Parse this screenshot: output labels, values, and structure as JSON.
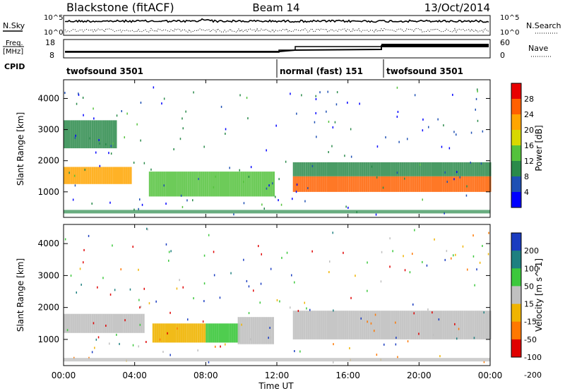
{
  "chart_data": {
    "type": "heatmap",
    "header": {
      "radar": "Blackstone (fitACF)",
      "beam": "Beam 14",
      "date": "13/Oct/2014"
    },
    "noise_panel": {
      "left_label": "N.Sky",
      "right_label": "N.Search",
      "left_ticks": [
        "10^5",
        "10^0"
      ],
      "right_ticks": [
        "10^5",
        "10^0"
      ]
    },
    "freq_panel": {
      "left_label_top": "Freq.",
      "left_label_bottom": "[MHz]",
      "left_ticks": [
        "18",
        "8"
      ],
      "right_label": "Nave",
      "right_ticks": [
        "60",
        "0"
      ]
    },
    "cpid": {
      "label": "CPID",
      "segments": [
        {
          "name": "twofsound 3501",
          "start_hour": 0,
          "end_hour": 12
        },
        {
          "name": "normal (fast) 151",
          "start_hour": 12,
          "end_hour": 18
        },
        {
          "name": "twofsound 3501",
          "start_hour": 18,
          "end_hour": 24
        }
      ]
    },
    "x": {
      "label": "Time UT",
      "range_hours": [
        0,
        24
      ],
      "ticks": [
        "00:00",
        "04:00",
        "08:00",
        "12:00",
        "16:00",
        "20:00",
        "00:00"
      ]
    },
    "y": {
      "label": "Slant Range [km]",
      "range_km": [
        180,
        4600
      ],
      "ticks": [
        "1000",
        "2000",
        "3000",
        "4000"
      ]
    },
    "power": {
      "colorbar_label": "Power [dB]",
      "range": [
        0,
        32
      ],
      "tick_labels": [
        "4",
        "8",
        "12",
        "16",
        "20",
        "24",
        "28"
      ],
      "colors": [
        "#0000ff",
        "#1e50b4",
        "#2a8a4a",
        "#54c23c",
        "#d8d800",
        "#ffa500",
        "#ff6000",
        "#e80000"
      ]
    },
    "velocity": {
      "colorbar_label": "Velocity [m s^-1]",
      "range": [
        -250,
        250
      ],
      "tick_labels": [
        "200",
        "100",
        "50",
        "15",
        "-15",
        "-50",
        "-100",
        "-200"
      ],
      "colors": [
        "#1a3cc0",
        "#1e8080",
        "#3cc83c",
        "#c0c0c0",
        "#f0b400",
        "#ff7800",
        "#e00000"
      ]
    },
    "power_bands": [
      {
        "t_start": 0.0,
        "t_end": 3.8,
        "range_start": 1250,
        "range_end": 1800,
        "power_db": 22
      },
      {
        "t_start": 0.0,
        "t_end": 3.0,
        "range_start": 2400,
        "range_end": 3300,
        "power_db": 10
      },
      {
        "t_start": 4.8,
        "t_end": 11.8,
        "range_start": 850,
        "range_end": 1650,
        "power_db": 14
      },
      {
        "t_start": 12.9,
        "t_end": 24.0,
        "range_start": 1000,
        "range_end": 1500,
        "power_db": 26
      },
      {
        "t_start": 12.9,
        "t_end": 24.0,
        "range_start": 1500,
        "range_end": 1950,
        "power_db": 10
      }
    ],
    "velocity_bands": [
      {
        "t_start": 0.0,
        "t_end": 4.5,
        "range_start": 1200,
        "range_end": 1800,
        "velocity": 0
      },
      {
        "t_start": 5.0,
        "t_end": 8.0,
        "range_start": 900,
        "range_end": 1500,
        "velocity": -40
      },
      {
        "t_start": 8.0,
        "t_end": 9.8,
        "range_start": 900,
        "range_end": 1500,
        "velocity": 40
      },
      {
        "t_start": 9.8,
        "t_end": 11.8,
        "range_start": 850,
        "range_end": 1700,
        "velocity": 0
      },
      {
        "t_start": 12.9,
        "t_end": 24.0,
        "range_start": 1000,
        "range_end": 1900,
        "velocity": 0
      }
    ]
  }
}
